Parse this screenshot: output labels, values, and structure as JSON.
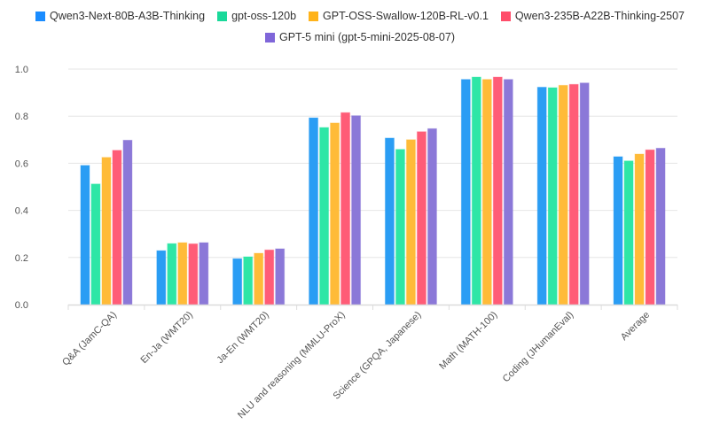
{
  "chart_data": {
    "type": "bar",
    "title": "",
    "xlabel": "",
    "ylabel": "",
    "ylim": [
      0,
      1.0
    ],
    "yticks": [
      "0.0",
      "0.2",
      "0.4",
      "0.6",
      "0.8",
      "1.0"
    ],
    "grid": true,
    "legend_position": "top-center",
    "categories": [
      "Q&A (JamC-QA)",
      "En-Ja (WMT20)",
      "Ja-En (WMT20)",
      "NLU and reasoning (MMLU-ProX)",
      "Science (GPQA, Japanese)",
      "Math (MATH-100)",
      "Coding (JHumanEval)",
      "Average"
    ],
    "series": [
      {
        "name": "Qwen3-Next-80B-A3B-Thinking",
        "color": "#2a9df4",
        "legend_color": "#1a8cff",
        "values": [
          0.591,
          0.229,
          0.195,
          0.793,
          0.707,
          0.956,
          0.923,
          0.628
        ]
      },
      {
        "name": "gpt-oss-120b",
        "color": "#2ee6a6",
        "legend_color": "#1ad99a",
        "values": [
          0.512,
          0.259,
          0.203,
          0.752,
          0.659,
          0.966,
          0.921,
          0.61
        ]
      },
      {
        "name": "GPT-OSS-Swallow-120B-RL-v0.1",
        "color": "#ffbb38",
        "legend_color": "#ffb31a",
        "values": [
          0.625,
          0.263,
          0.218,
          0.771,
          0.7,
          0.956,
          0.931,
          0.639
        ]
      },
      {
        "name": "Qwen3-235B-A22B-Thinking-2507",
        "color": "#ff5c77",
        "legend_color": "#ff4d6a",
        "values": [
          0.655,
          0.258,
          0.232,
          0.815,
          0.734,
          0.966,
          0.935,
          0.657
        ]
      },
      {
        "name": "GPT-5 mini (gpt-5-mini-2025-08-07)",
        "color": "#8b78d8",
        "legend_color": "#7f66d9",
        "values": [
          0.698,
          0.263,
          0.237,
          0.802,
          0.747,
          0.956,
          0.941,
          0.664
        ]
      }
    ]
  }
}
